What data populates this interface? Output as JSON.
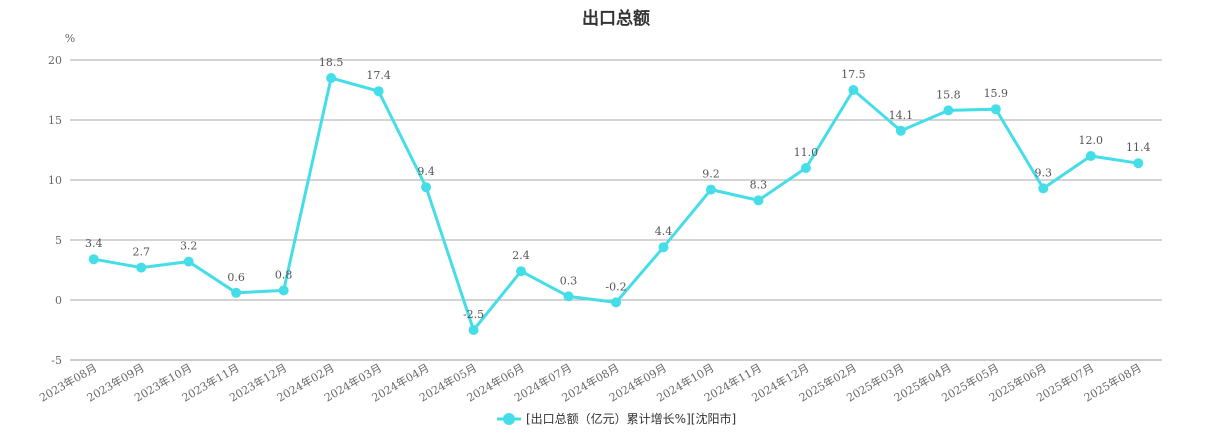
{
  "chart_data": {
    "type": "line",
    "title": "出口总额",
    "ylabel": "%",
    "xlabel": "",
    "ylim": [
      -5,
      20
    ],
    "yticks": [
      -5,
      0,
      5,
      10,
      15,
      20
    ],
    "grid": true,
    "legend_position": "bottom-center",
    "color": "#45dde8",
    "categories": [
      "2023年08月",
      "2023年09月",
      "2023年10月",
      "2023年11月",
      "2023年12月",
      "2024年02月",
      "2024年03月",
      "2024年04月",
      "2024年05月",
      "2024年06月",
      "2024年07月",
      "2024年08月",
      "2024年09月",
      "2024年10月",
      "2024年11月",
      "2024年12月",
      "2025年02月",
      "2025年03月",
      "2025年04月",
      "2025年05月",
      "2025年06月",
      "2025年07月",
      "2025年08月"
    ],
    "series": [
      {
        "name": "[出口总额（亿元）累计增长%][沈阳市]",
        "values": [
          3.4,
          2.7,
          3.2,
          0.6,
          0.8,
          18.5,
          17.4,
          9.4,
          -2.5,
          2.4,
          0.3,
          -0.2,
          4.4,
          9.2,
          8.3,
          11.0,
          17.5,
          14.1,
          15.8,
          15.9,
          9.3,
          12.0,
          11.4
        ]
      }
    ]
  }
}
